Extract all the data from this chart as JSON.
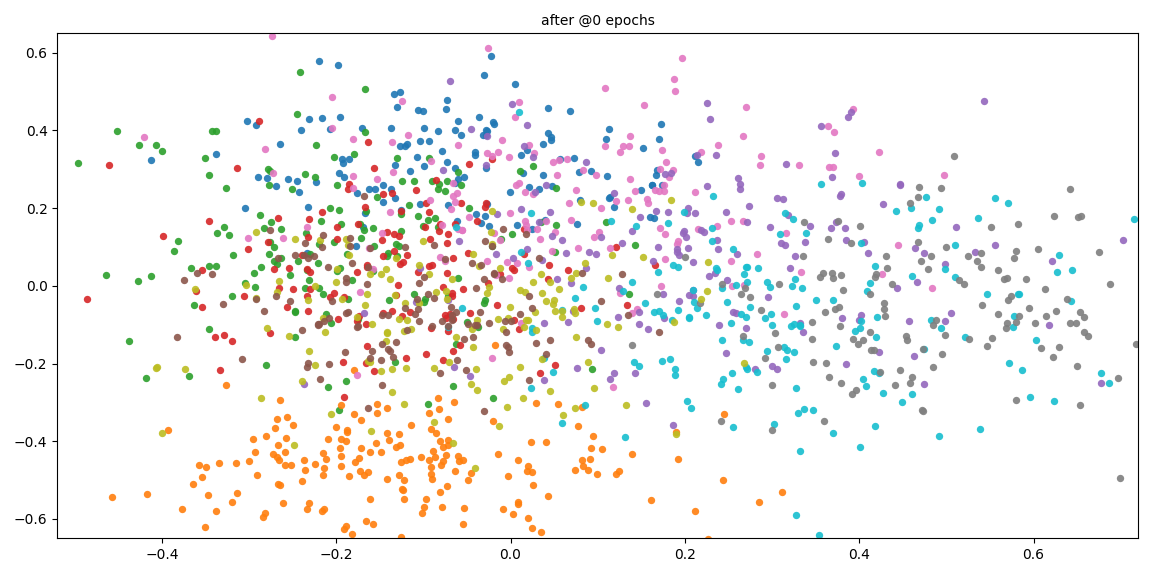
{
  "title": "after @0 epochs",
  "title_fontsize": 10,
  "xlim": [
    -0.52,
    0.72
  ],
  "ylim": [
    -0.65,
    0.65
  ],
  "n_classes": 10,
  "seed": 0,
  "colors": [
    "#1f77b4",
    "#2ca02c",
    "#d62728",
    "#ff7f0e",
    "#e377c2",
    "#9467bd",
    "#17becf",
    "#7f7f7f",
    "#bcbd22",
    "#8c564b"
  ],
  "marker_size": 28,
  "alpha": 0.9,
  "background_color": "#ffffff",
  "figsize": [
    11.52,
    5.76
  ],
  "dpi": 100,
  "cluster_params": [
    [
      0,
      -0.08,
      0.33,
      0.13,
      0.11,
      130
    ],
    [
      1,
      -0.18,
      0.12,
      0.14,
      0.16,
      150
    ],
    [
      2,
      -0.12,
      0.05,
      0.12,
      0.15,
      130
    ],
    [
      3,
      -0.13,
      -0.47,
      0.16,
      0.1,
      180
    ],
    [
      4,
      0.08,
      0.22,
      0.18,
      0.16,
      150
    ],
    [
      5,
      0.22,
      0.08,
      0.18,
      0.18,
      160
    ],
    [
      6,
      0.32,
      -0.08,
      0.18,
      0.18,
      170
    ],
    [
      7,
      0.5,
      -0.06,
      0.14,
      0.16,
      140
    ],
    [
      8,
      -0.06,
      -0.08,
      0.15,
      0.15,
      140
    ],
    [
      9,
      -0.1,
      -0.05,
      0.12,
      0.12,
      120
    ]
  ]
}
